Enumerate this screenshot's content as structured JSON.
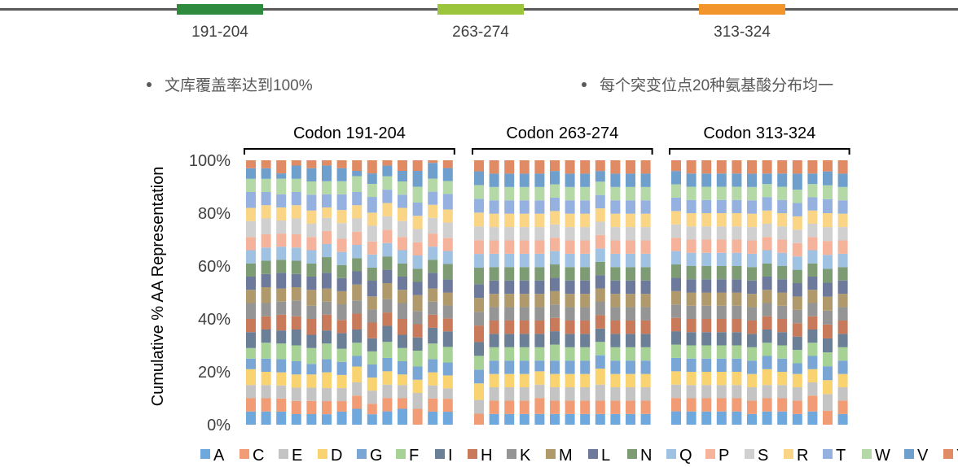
{
  "regions": [
    {
      "label": "191-204",
      "color": "#2e8b3e"
    },
    {
      "label": "263-274",
      "color": "#9bc53d"
    },
    {
      "label": "313-324",
      "color": "#f2952b"
    }
  ],
  "bullets": [
    "文库覆盖率达到100%",
    "每个突变位点20种氨基酸分布均一"
  ],
  "colors": {
    "A": "#6fa8dc",
    "C": "#f19c74",
    "E": "#c4c4c4",
    "D": "#f9d36f",
    "G": "#7aa6d6",
    "F": "#a6d395",
    "I": "#6b7f96",
    "H": "#c97a5b",
    "K": "#959595",
    "M": "#b09a6c",
    "L": "#6e7a9c",
    "N": "#7d9c73",
    "Q": "#9fc2e3",
    "P": "#f5b39b",
    "S": "#d0d0d0",
    "R": "#fad585",
    "T": "#95b1e0",
    "W": "#b4d9a6",
    "V": "#6f9fcc",
    "Y": "#e08b64"
  },
  "chart_data": {
    "type": "bar",
    "stacked": true,
    "ylabel": "Cumulative % AA Representation",
    "ylim": [
      0,
      100
    ],
    "yticks": [
      "0%",
      "20%",
      "40%",
      "60%",
      "80%",
      "100%"
    ],
    "groups": [
      {
        "label": "Codon 191-204",
        "count": 14
      },
      {
        "label": "Codon 263-274",
        "count": 12
      },
      {
        "label": "Codon 313-324",
        "count": 12
      }
    ],
    "series": [
      {
        "name": "A",
        "values": [
          5,
          5,
          5,
          4,
          4,
          4,
          5,
          6,
          4,
          5,
          6,
          0,
          5,
          5,
          0,
          4,
          4,
          4,
          4,
          4,
          4,
          4,
          4,
          4,
          4,
          4,
          5,
          5,
          5,
          5,
          5,
          4,
          5,
          5,
          4,
          5,
          0,
          4
        ]
      },
      {
        "name": "C",
        "values": [
          5,
          5,
          5,
          5,
          5,
          5,
          4,
          5,
          4,
          5,
          4,
          6,
          5,
          5,
          4,
          5,
          5,
          5,
          6,
          5,
          5,
          5,
          5,
          5,
          5,
          5,
          5,
          5,
          5,
          5,
          5,
          5,
          5,
          5,
          5,
          6,
          5,
          5
        ]
      },
      {
        "name": "E",
        "values": [
          5,
          5,
          5,
          5,
          5,
          5,
          5,
          5,
          5,
          5,
          5,
          6,
          5,
          4,
          5,
          5,
          5,
          5,
          5,
          5,
          5,
          5,
          6,
          5,
          5,
          5,
          5,
          5,
          5,
          5,
          5,
          5,
          5,
          5,
          5,
          5,
          6,
          5
        ]
      },
      {
        "name": "D",
        "values": [
          6,
          5,
          5,
          5,
          5,
          6,
          5,
          6,
          5,
          5,
          4,
          5,
          5,
          5,
          6,
          5,
          5,
          5,
          5,
          5,
          5,
          5,
          6,
          5,
          5,
          5,
          5,
          5,
          5,
          5,
          5,
          5,
          6,
          5,
          5,
          5,
          5,
          5
        ]
      },
      {
        "name": "G",
        "values": [
          4,
          5,
          5,
          5,
          4,
          5,
          5,
          4,
          5,
          5,
          5,
          5,
          5,
          5,
          5,
          5,
          5,
          5,
          4,
          5,
          5,
          5,
          5,
          5,
          5,
          5,
          5,
          5,
          5,
          5,
          5,
          5,
          5,
          5,
          4,
          5,
          5,
          5
        ]
      },
      {
        "name": "F",
        "values": [
          4,
          6,
          6,
          6,
          6,
          6,
          5,
          5,
          5,
          6,
          5,
          6,
          6,
          6,
          5,
          5,
          5,
          5,
          5,
          6,
          5,
          5,
          5,
          5,
          5,
          5,
          5,
          5,
          5,
          5,
          5,
          5,
          5,
          5,
          5,
          5,
          5,
          5
        ]
      },
      {
        "name": "I",
        "values": [
          6,
          5,
          5,
          6,
          5,
          5,
          6,
          5,
          5,
          6,
          5,
          5,
          6,
          6,
          5,
          5,
          5,
          5,
          5,
          5,
          5,
          5,
          5,
          5,
          5,
          5,
          5,
          5,
          5,
          5,
          5,
          5,
          5,
          5,
          5,
          5,
          5,
          5
        ]
      },
      {
        "name": "H",
        "values": [
          5,
          5,
          6,
          5,
          6,
          6,
          5,
          6,
          6,
          5,
          6,
          5,
          5,
          5,
          6,
          5,
          5,
          5,
          5,
          5,
          5,
          5,
          5,
          5,
          5,
          5,
          5,
          5,
          5,
          5,
          5,
          5,
          5,
          5,
          5,
          5,
          5,
          5
        ]
      },
      {
        "name": "K",
        "values": [
          6,
          5,
          5,
          6,
          5,
          5,
          6,
          5,
          5,
          5,
          6,
          5,
          5,
          5,
          5,
          5,
          5,
          5,
          5,
          5,
          5,
          5,
          5,
          5,
          5,
          5,
          5,
          5,
          5,
          5,
          5,
          5,
          5,
          5,
          5,
          5,
          5,
          5
        ]
      },
      {
        "name": "M",
        "values": [
          5,
          6,
          5,
          5,
          6,
          5,
          5,
          6,
          5,
          6,
          5,
          6,
          5,
          5,
          5,
          5,
          5,
          5,
          5,
          5,
          5,
          5,
          5,
          5,
          5,
          5,
          5,
          5,
          5,
          5,
          5,
          5,
          5,
          5,
          5,
          5,
          5,
          5
        ]
      },
      {
        "name": "L",
        "values": [
          5,
          5,
          6,
          5,
          5,
          6,
          5,
          5,
          6,
          5,
          5,
          5,
          6,
          5,
          5,
          5,
          5,
          5,
          5,
          5,
          5,
          5,
          5,
          5,
          5,
          5,
          5,
          5,
          5,
          5,
          5,
          5,
          5,
          5,
          5,
          5,
          5,
          5
        ]
      },
      {
        "name": "N",
        "values": [
          5,
          5,
          5,
          5,
          5,
          6,
          5,
          5,
          5,
          5,
          5,
          5,
          5,
          6,
          6,
          5,
          5,
          5,
          5,
          5,
          5,
          5,
          5,
          5,
          5,
          5,
          5,
          5,
          5,
          5,
          5,
          5,
          5,
          5,
          5,
          5,
          5,
          5
        ]
      },
      {
        "name": "Q",
        "values": [
          5,
          5,
          5,
          5,
          5,
          5,
          5,
          5,
          5,
          5,
          5,
          5,
          5,
          5,
          5,
          5,
          5,
          5,
          5,
          5,
          5,
          5,
          5,
          5,
          5,
          5,
          5,
          5,
          5,
          5,
          5,
          5,
          5,
          5,
          5,
          5,
          5,
          5
        ]
      },
      {
        "name": "P",
        "values": [
          5,
          5,
          5,
          5,
          5,
          5,
          5,
          5,
          5,
          5,
          5,
          5,
          5,
          5,
          5,
          5,
          5,
          5,
          5,
          5,
          5,
          5,
          5,
          5,
          5,
          5,
          5,
          5,
          5,
          5,
          5,
          5,
          5,
          5,
          5,
          5,
          5,
          5
        ]
      },
      {
        "name": "S",
        "values": [
          6,
          6,
          5,
          6,
          5,
          5,
          6,
          5,
          6,
          5,
          6,
          5,
          6,
          6,
          5,
          5,
          5,
          5,
          5,
          5,
          5,
          5,
          5,
          5,
          5,
          5,
          5,
          5,
          5,
          5,
          5,
          5,
          5,
          5,
          5,
          5,
          5,
          5
        ]
      },
      {
        "name": "R",
        "values": [
          5,
          5,
          5,
          5,
          5,
          4,
          5,
          5,
          5,
          5,
          5,
          5,
          5,
          5,
          5,
          5,
          5,
          5,
          5,
          5,
          5,
          5,
          5,
          5,
          5,
          5,
          5,
          5,
          5,
          5,
          5,
          5,
          5,
          5,
          5,
          5,
          5,
          5
        ]
      },
      {
        "name": "T",
        "values": [
          6,
          5,
          5,
          5,
          6,
          5,
          6,
          5,
          6,
          5,
          5,
          5,
          5,
          6,
          5,
          5,
          5,
          5,
          5,
          5,
          5,
          5,
          5,
          5,
          5,
          5,
          5,
          5,
          5,
          5,
          5,
          5,
          5,
          5,
          5,
          5,
          5,
          5
        ]
      },
      {
        "name": "W",
        "values": [
          5,
          5,
          6,
          5,
          5,
          5,
          5,
          6,
          5,
          5,
          5,
          6,
          5,
          5,
          5,
          5,
          5,
          5,
          5,
          5,
          5,
          5,
          5,
          5,
          5,
          5,
          5,
          5,
          5,
          5,
          5,
          5,
          5,
          5,
          5,
          5,
          5,
          5
        ]
      },
      {
        "name": "V",
        "values": [
          4,
          4,
          2,
          5,
          5,
          6,
          5,
          2,
          4,
          4,
          4,
          6,
          6,
          5,
          5,
          5,
          5,
          5,
          5,
          5,
          5,
          5,
          4,
          5,
          5,
          5,
          5,
          5,
          5,
          5,
          5,
          5,
          4,
          5,
          6,
          4,
          5,
          5
        ]
      },
      {
        "name": "Y",
        "values": [
          3,
          3,
          5,
          2,
          3,
          2,
          3,
          4,
          5,
          2,
          4,
          4,
          1,
          3,
          4,
          5,
          5,
          5,
          5,
          4,
          5,
          5,
          4,
          5,
          5,
          5,
          4,
          5,
          5,
          5,
          5,
          5,
          5,
          5,
          5,
          5,
          4,
          5
        ]
      }
    ]
  }
}
